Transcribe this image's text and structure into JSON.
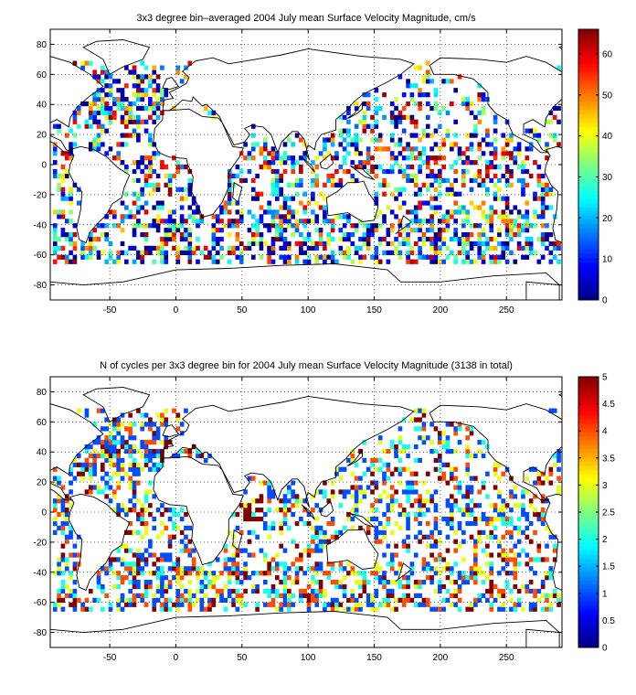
{
  "chart_data": [
    {
      "type": "heatmap",
      "title": "3x3 degree bin–averaged 2004 July mean Surface Velocity Magnitude, cm/s",
      "xlim": [
        -95,
        292
      ],
      "ylim": [
        -90,
        90
      ],
      "xticks": [
        -50,
        0,
        50,
        100,
        150,
        200,
        250
      ],
      "yticks": [
        -80,
        -60,
        -40,
        -20,
        0,
        20,
        40,
        60,
        80
      ],
      "colorbar": {
        "min": 0,
        "max": 66,
        "ticks": [
          0,
          10,
          20,
          30,
          40,
          50,
          60
        ]
      },
      "grid": true,
      "bin_size_deg": 3,
      "colormap": "jet"
    },
    {
      "type": "heatmap",
      "title": "N of cycles per 3x3 degree bin for 2004 July mean Surface Velocity Magnitude (3138 in total)",
      "xlim": [
        -95,
        292
      ],
      "ylim": [
        -90,
        90
      ],
      "xticks": [
        -50,
        0,
        50,
        100,
        150,
        200,
        250
      ],
      "yticks": [
        -80,
        -60,
        -40,
        -20,
        0,
        20,
        40,
        60,
        80
      ],
      "colorbar": {
        "min": 0,
        "max": 5,
        "ticks": [
          0,
          0.5,
          1,
          1.5,
          2,
          2.5,
          3,
          3.5,
          4,
          4.5,
          5
        ]
      },
      "grid": true,
      "bin_size_deg": 3,
      "colormap": "jet"
    }
  ]
}
